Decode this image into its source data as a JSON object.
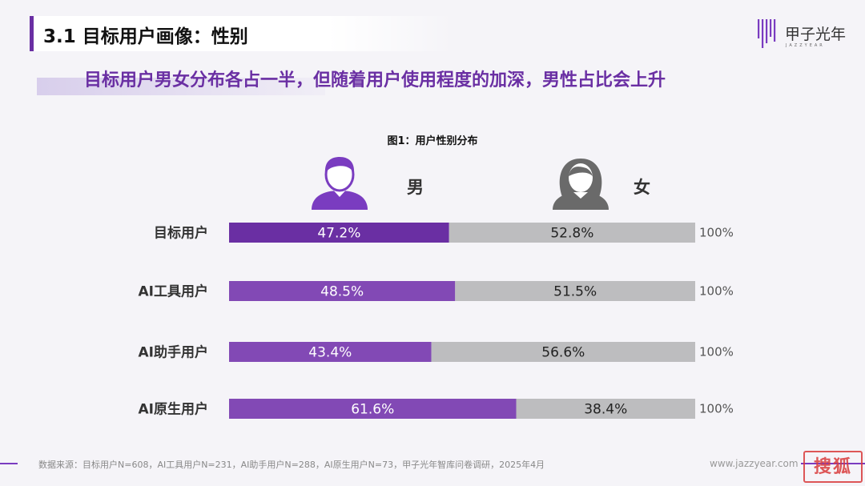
{
  "header": {
    "title": "3.1 目标用户画像：性别",
    "logo_text": "甲子光年",
    "logo_sub": "JAZZYEAR"
  },
  "subtitle": "目标用户男女分布各占一半，但随着用户使用程度的加深，男性占比会上升",
  "legend": {
    "male": "男",
    "female": "女"
  },
  "chart_data": {
    "type": "bar",
    "orientation": "horizontal-stacked-100",
    "title": "图1：用户性别分布",
    "categories": [
      "目标用户",
      "AI工具用户",
      "AI助手用户",
      "AI原生用户"
    ],
    "series": [
      {
        "name": "男",
        "values": [
          47.2,
          48.5,
          43.4,
          61.6
        ],
        "labels": [
          "47.2%",
          "48.5%",
          "43.4%",
          "61.6%"
        ],
        "color": "#8249b5"
      },
      {
        "name": "女",
        "values": [
          52.8,
          51.5,
          56.6,
          38.4
        ],
        "labels": [
          "52.8%",
          "51.5%",
          "56.6%",
          "38.4%"
        ],
        "color": "#bdbdbf"
      }
    ],
    "totals": [
      "100%",
      "100%",
      "100%",
      "100%"
    ],
    "first_bar_color": "#6a2fa3",
    "xlim": [
      0,
      100
    ]
  },
  "footer": {
    "source": "数据来源：目标用户N=608，AI工具用户N=231，AI助手用户N=288，AI原生用户N=73，甲子光年智库问卷调研，2025年4月",
    "site": "www.jazzyear.com",
    "stamp": "搜狐"
  },
  "colors": {
    "accent": "#6a2fa3",
    "male": "#8249b5",
    "female": "#bdbdbf"
  }
}
